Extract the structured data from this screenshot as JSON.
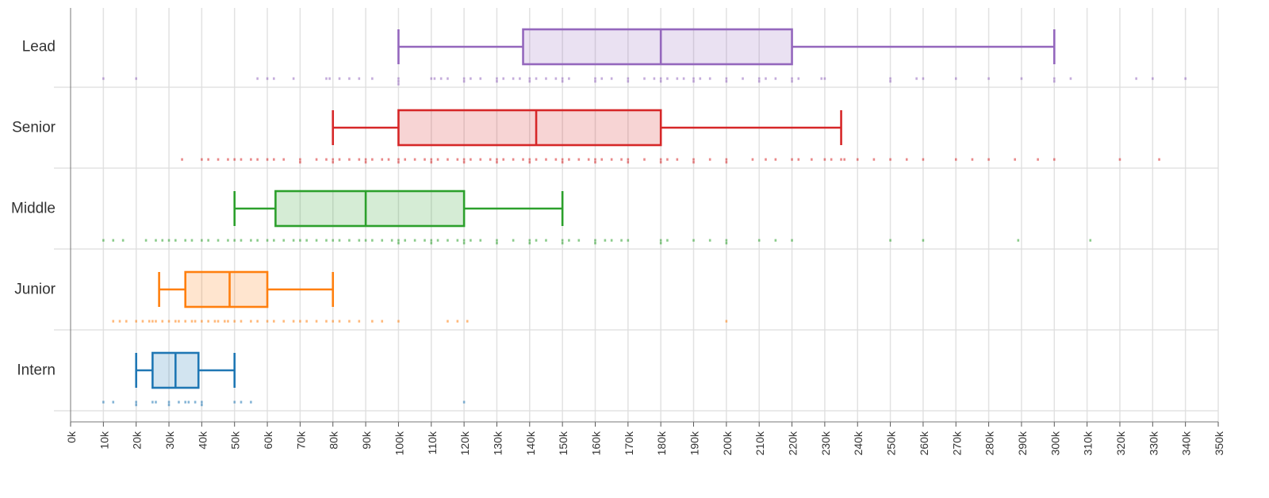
{
  "chart_data": {
    "type": "boxplot",
    "title": "",
    "xlabel": "",
    "ylabel": "",
    "xlim": [
      0,
      350000
    ],
    "x_ticks": [
      0,
      10000,
      20000,
      30000,
      40000,
      50000,
      60000,
      70000,
      80000,
      90000,
      100000,
      110000,
      120000,
      130000,
      140000,
      150000,
      160000,
      170000,
      180000,
      190000,
      200000,
      210000,
      220000,
      230000,
      240000,
      250000,
      260000,
      270000,
      280000,
      290000,
      300000,
      310000,
      320000,
      330000,
      340000,
      350000
    ],
    "x_tick_labels": [
      "0k",
      "10k",
      "20k",
      "30k",
      "40k",
      "50k",
      "60k",
      "70k",
      "80k",
      "90k",
      "100k",
      "110k",
      "120k",
      "130k",
      "140k",
      "150k",
      "160k",
      "170k",
      "180k",
      "190k",
      "200k",
      "210k",
      "220k",
      "230k",
      "240k",
      "250k",
      "260k",
      "270k",
      "280k",
      "290k",
      "300k",
      "310k",
      "320k",
      "330k",
      "340k",
      "350k"
    ],
    "grid": true,
    "categories": [
      "Lead",
      "Senior",
      "Middle",
      "Junior",
      "Intern"
    ],
    "series": [
      {
        "name": "Lead",
        "color": "#9467bd",
        "min": 100000,
        "q1": 138000,
        "median": 180000,
        "q3": 220000,
        "max": 300000,
        "points": [
          10000,
          20000,
          57000,
          60000,
          62000,
          68000,
          78000,
          79000,
          82000,
          85000,
          88000,
          92000,
          100000,
          100000,
          100000,
          110000,
          111000,
          113000,
          115000,
          120000,
          120000,
          122000,
          125000,
          130000,
          130000,
          132000,
          135000,
          137000,
          140000,
          140000,
          142000,
          145000,
          148000,
          150000,
          150000,
          152000,
          160000,
          160000,
          162000,
          165000,
          170000,
          170000,
          175000,
          178000,
          180000,
          180000,
          182000,
          185000,
          187000,
          190000,
          190000,
          192000,
          195000,
          200000,
          200000,
          205000,
          210000,
          210000,
          212000,
          215000,
          220000,
          220000,
          222000,
          229000,
          230000,
          250000,
          250000,
          258000,
          260000,
          270000,
          280000,
          290000,
          300000,
          300000,
          305000,
          325000,
          330000,
          340000
        ]
      },
      {
        "name": "Senior",
        "color": "#d62728",
        "min": 80000,
        "q1": 100000,
        "median": 142000,
        "q3": 180000,
        "max": 235000,
        "points": [
          34000,
          40000,
          42000,
          45000,
          48000,
          50000,
          52000,
          55000,
          57000,
          60000,
          62000,
          65000,
          70000,
          70000,
          75000,
          78000,
          80000,
          80000,
          82000,
          85000,
          88000,
          90000,
          90000,
          92000,
          95000,
          97000,
          100000,
          100000,
          102000,
          105000,
          108000,
          110000,
          110000,
          112000,
          115000,
          118000,
          120000,
          120000,
          122000,
          125000,
          128000,
          130000,
          130000,
          132000,
          135000,
          138000,
          140000,
          140000,
          142000,
          145000,
          148000,
          150000,
          150000,
          152000,
          155000,
          158000,
          160000,
          160000,
          162000,
          165000,
          168000,
          170000,
          170000,
          175000,
          180000,
          180000,
          182000,
          185000,
          190000,
          190000,
          195000,
          200000,
          200000,
          208000,
          212000,
          215000,
          220000,
          222000,
          226000,
          230000,
          232000,
          235000,
          236000,
          240000,
          245000,
          250000,
          255000,
          260000,
          270000,
          275000,
          280000,
          288000,
          295000,
          300000,
          320000,
          332000
        ]
      },
      {
        "name": "Middle",
        "color": "#2ca02c",
        "min": 50000,
        "q1": 62500,
        "median": 90000,
        "q3": 120000,
        "max": 150000,
        "points": [
          10000,
          13000,
          16000,
          23000,
          26000,
          28000,
          30000,
          32000,
          35000,
          37000,
          40000,
          42000,
          45000,
          48000,
          50000,
          52000,
          55000,
          57000,
          60000,
          62000,
          65000,
          68000,
          70000,
          72000,
          75000,
          78000,
          80000,
          82000,
          85000,
          88000,
          90000,
          92000,
          95000,
          98000,
          100000,
          100000,
          102000,
          105000,
          108000,
          110000,
          110000,
          112000,
          115000,
          118000,
          120000,
          120000,
          122000,
          125000,
          130000,
          130000,
          135000,
          140000,
          140000,
          142000,
          145000,
          150000,
          150000,
          152000,
          155000,
          160000,
          160000,
          163000,
          165000,
          168000,
          170000,
          180000,
          180000,
          182000,
          190000,
          195000,
          200000,
          200000,
          210000,
          215000,
          220000,
          250000,
          260000,
          289000,
          311000
        ]
      },
      {
        "name": "Junior",
        "color": "#ff7f0e",
        "min": 27000,
        "q1": 35000,
        "median": 48500,
        "q3": 60000,
        "max": 80000,
        "points": [
          13000,
          15000,
          17000,
          20000,
          22000,
          24000,
          25000,
          26000,
          28000,
          30000,
          32000,
          33000,
          35000,
          37000,
          38000,
          40000,
          42000,
          44000,
          45000,
          47000,
          48000,
          50000,
          52000,
          55000,
          57000,
          60000,
          62000,
          65000,
          68000,
          70000,
          72000,
          75000,
          78000,
          80000,
          82000,
          85000,
          88000,
          92000,
          95000,
          100000,
          115000,
          118000,
          121000,
          200000
        ]
      },
      {
        "name": "Intern",
        "color": "#1f77b4",
        "min": 20000,
        "q1": 25000,
        "median": 32000,
        "q3": 39000,
        "max": 50000,
        "points": [
          10000,
          13000,
          20000,
          20000,
          25000,
          26000,
          30000,
          30000,
          33000,
          35000,
          36000,
          38000,
          40000,
          40000,
          50000,
          52000,
          55000,
          120000
        ]
      }
    ]
  }
}
